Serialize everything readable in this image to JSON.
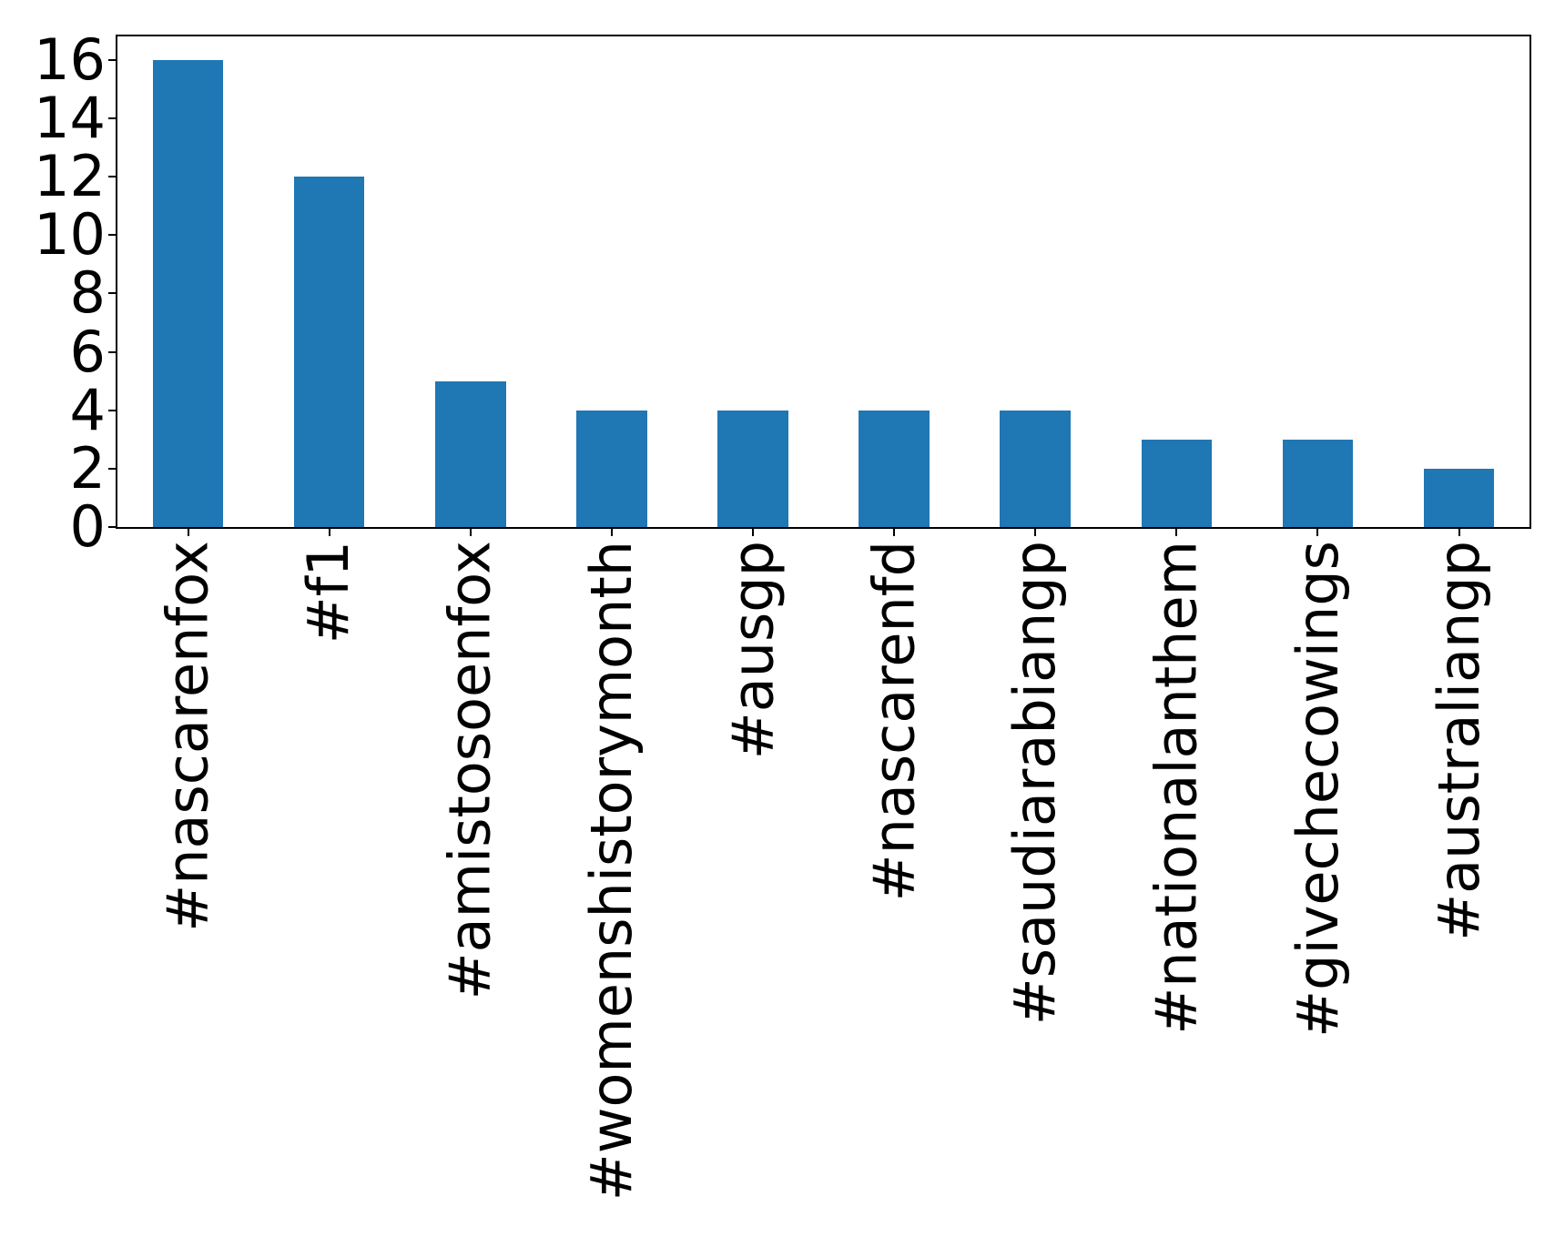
{
  "figure": {
    "background": "#ffffff",
    "text_color": "#000000"
  },
  "chart_data": {
    "type": "bar",
    "categories": [
      "#nascarenfox",
      "#f1",
      "#amistosoenfox",
      "#womenshistorymonth",
      "#ausgp",
      "#nascarenfd",
      "#saudiarabiangp",
      "#nationalanthem",
      "#givechecowings",
      "#australiangp"
    ],
    "values": [
      16,
      12,
      5,
      4,
      4,
      4,
      4,
      3,
      3,
      2
    ],
    "yticks": [
      0,
      2,
      4,
      6,
      8,
      10,
      12,
      14,
      16
    ],
    "ylim": [
      0,
      16.8
    ],
    "bar_color": "#1f77b4",
    "x_tick_rotation": 90,
    "grid": false,
    "legend": "none"
  }
}
